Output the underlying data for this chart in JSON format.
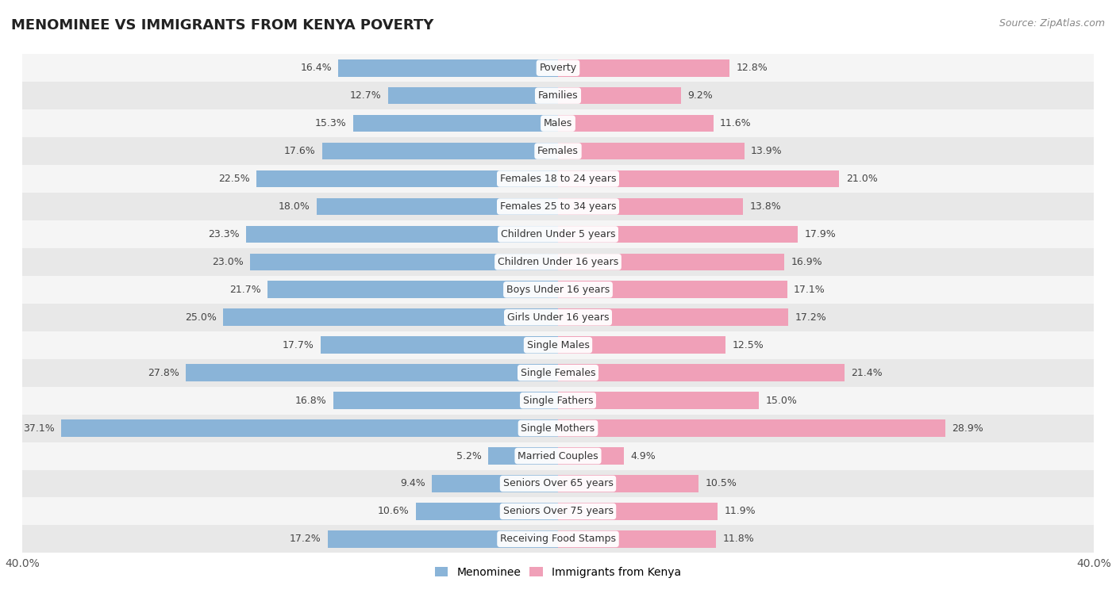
{
  "title": "MENOMINEE VS IMMIGRANTS FROM KENYA POVERTY",
  "source": "Source: ZipAtlas.com",
  "categories": [
    "Poverty",
    "Families",
    "Males",
    "Females",
    "Females 18 to 24 years",
    "Females 25 to 34 years",
    "Children Under 5 years",
    "Children Under 16 years",
    "Boys Under 16 years",
    "Girls Under 16 years",
    "Single Males",
    "Single Females",
    "Single Fathers",
    "Single Mothers",
    "Married Couples",
    "Seniors Over 65 years",
    "Seniors Over 75 years",
    "Receiving Food Stamps"
  ],
  "menominee": [
    16.4,
    12.7,
    15.3,
    17.6,
    22.5,
    18.0,
    23.3,
    23.0,
    21.7,
    25.0,
    17.7,
    27.8,
    16.8,
    37.1,
    5.2,
    9.4,
    10.6,
    17.2
  ],
  "kenya": [
    12.8,
    9.2,
    11.6,
    13.9,
    21.0,
    13.8,
    17.9,
    16.9,
    17.1,
    17.2,
    12.5,
    21.4,
    15.0,
    28.9,
    4.9,
    10.5,
    11.9,
    11.8
  ],
  "menominee_color": "#8ab4d8",
  "kenya_color": "#f0a0b8",
  "row_bg_even": "#f5f5f5",
  "row_bg_odd": "#e8e8e8",
  "xlim": 40.0,
  "legend_label_menominee": "Menominee",
  "legend_label_kenya": "Immigrants from Kenya",
  "bar_height": 0.62,
  "cat_label_fontsize": 9,
  "val_label_fontsize": 9
}
